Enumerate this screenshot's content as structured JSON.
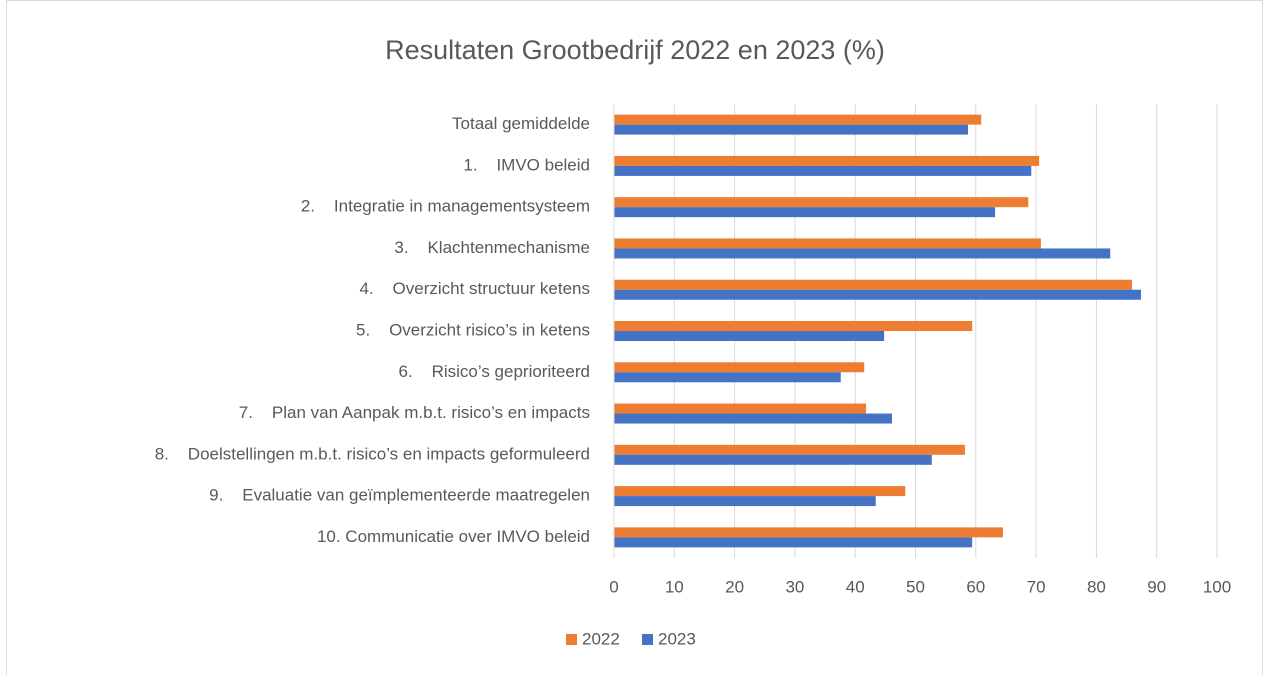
{
  "chart_data": {
    "type": "hbar",
    "title": "Resultaten Grootbedrijf 2022 en 2023 (%)",
    "categories": [
      "Totaal gemiddelde",
      "1.    IMVO beleid",
      "2.    Integratie in managementsysteem",
      "3.    Klachtenmechanisme",
      "4.    Overzicht structuur ketens",
      "5.    Overzicht risico’s in ketens",
      "6.    Risico’s geprioriteerd",
      "7.    Plan van Aanpak m.b.t. risico’s en impacts",
      "8.    Doelstellingen m.b.t. risico’s en impacts geformuleerd",
      "9.    Evaluatie van geïmplementeerde maatregelen",
      "10. Communicatie over IMVO beleid"
    ],
    "series": [
      {
        "name": "2022",
        "color": "#ed7d31",
        "values": [
          60.9,
          70.5,
          68.7,
          70.8,
          85.9,
          59.4,
          41.5,
          41.8,
          58.2,
          48.3,
          64.5
        ]
      },
      {
        "name": "2023",
        "color": "#4472c4",
        "values": [
          58.7,
          69.2,
          63.2,
          82.3,
          87.4,
          44.8,
          37.6,
          46.1,
          52.7,
          43.4,
          59.4
        ]
      }
    ],
    "xlim": [
      0,
      100
    ],
    "xticks": [
      0,
      10,
      20,
      30,
      40,
      50,
      60,
      70,
      80,
      90,
      100
    ],
    "grid": true,
    "legend": "bottom"
  }
}
